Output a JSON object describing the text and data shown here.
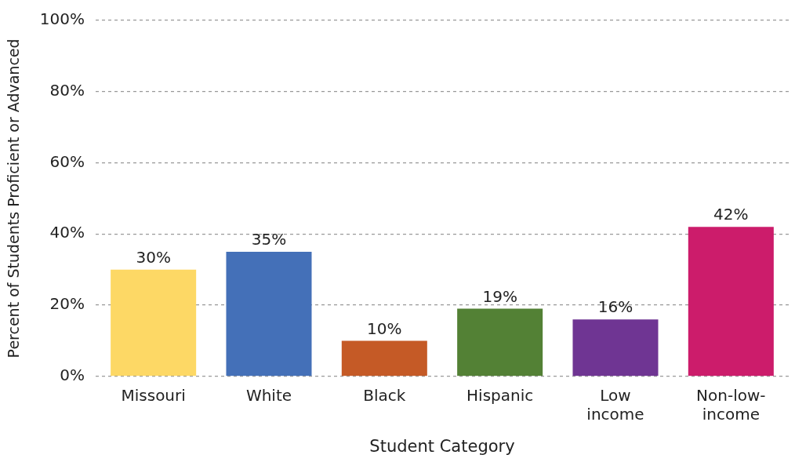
{
  "chart_data": {
    "type": "bar",
    "xlabel": "Student Category",
    "ylabel": "Percent of Students Proficient or Advanced",
    "categories": [
      "Missouri",
      "White",
      "Black",
      "Hispanic",
      "Low income",
      "Non-low-income"
    ],
    "values": [
      30,
      35,
      10,
      19,
      16,
      42
    ],
    "colors": [
      "#fdd865",
      "#4470b8",
      "#c55a26",
      "#538135",
      "#6f3593",
      "#cc1c6b"
    ],
    "ylim": [
      0,
      100
    ],
    "yticks": [
      {
        "value": 0,
        "label": "0%"
      },
      {
        "value": 20,
        "label": "20%"
      },
      {
        "value": 40,
        "label": "40%"
      },
      {
        "value": 60,
        "label": "60%"
      },
      {
        "value": 80,
        "label": "80%"
      },
      {
        "value": 100,
        "label": "100%"
      }
    ],
    "data_labels": true,
    "value_labels": [
      "30%",
      "35%",
      "10%",
      "19%",
      "16%",
      "42%"
    ],
    "grid": "y",
    "legend": false
  }
}
